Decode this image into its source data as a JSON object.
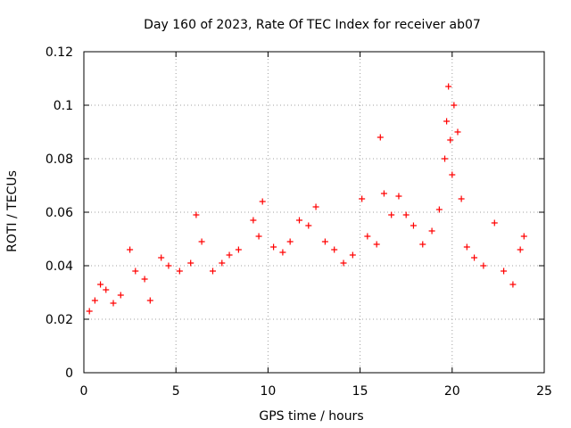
{
  "chart_data": {
    "type": "scatter",
    "title": "Day 160 of 2023, Rate Of TEC Index for receiver ab07",
    "xlabel": "GPS time / hours",
    "ylabel": "ROTI / TECUs",
    "xlim": [
      0,
      25
    ],
    "ylim": [
      0,
      0.12
    ],
    "xticks": [
      "0",
      "5",
      "10",
      "15",
      "20",
      "25"
    ],
    "yticks": [
      "0",
      "0.02",
      "0.04",
      "0.06",
      "0.08",
      "0.1",
      "0.12"
    ],
    "grid": true,
    "marker": "+",
    "color": "#ff0000",
    "series": [
      {
        "points": [
          [
            0.3,
            0.023
          ],
          [
            0.6,
            0.027
          ],
          [
            0.9,
            0.033
          ],
          [
            1.2,
            0.031
          ],
          [
            1.6,
            0.026
          ],
          [
            2.0,
            0.029
          ],
          [
            2.5,
            0.046
          ],
          [
            2.8,
            0.038
          ],
          [
            3.3,
            0.035
          ],
          [
            3.6,
            0.027
          ],
          [
            4.2,
            0.043
          ],
          [
            4.6,
            0.04
          ],
          [
            5.2,
            0.038
          ],
          [
            5.8,
            0.041
          ],
          [
            6.1,
            0.059
          ],
          [
            6.4,
            0.049
          ],
          [
            7.0,
            0.038
          ],
          [
            7.5,
            0.041
          ],
          [
            7.9,
            0.044
          ],
          [
            8.4,
            0.046
          ],
          [
            9.2,
            0.057
          ],
          [
            9.5,
            0.051
          ],
          [
            9.7,
            0.064
          ],
          [
            10.3,
            0.047
          ],
          [
            10.8,
            0.045
          ],
          [
            11.2,
            0.049
          ],
          [
            11.7,
            0.057
          ],
          [
            12.2,
            0.055
          ],
          [
            12.6,
            0.062
          ],
          [
            13.1,
            0.049
          ],
          [
            13.6,
            0.046
          ],
          [
            14.1,
            0.041
          ],
          [
            14.6,
            0.044
          ],
          [
            15.1,
            0.065
          ],
          [
            15.4,
            0.051
          ],
          [
            15.9,
            0.048
          ],
          [
            16.1,
            0.088
          ],
          [
            16.3,
            0.067
          ],
          [
            16.7,
            0.059
          ],
          [
            17.1,
            0.066
          ],
          [
            17.5,
            0.059
          ],
          [
            17.9,
            0.055
          ],
          [
            18.4,
            0.048
          ],
          [
            18.9,
            0.053
          ],
          [
            19.3,
            0.061
          ],
          [
            19.6,
            0.08
          ],
          [
            19.7,
            0.094
          ],
          [
            19.8,
            0.107
          ],
          [
            19.9,
            0.087
          ],
          [
            20.0,
            0.074
          ],
          [
            20.1,
            0.1
          ],
          [
            20.3,
            0.09
          ],
          [
            20.5,
            0.065
          ],
          [
            20.8,
            0.047
          ],
          [
            21.2,
            0.043
          ],
          [
            21.7,
            0.04
          ],
          [
            22.3,
            0.056
          ],
          [
            22.8,
            0.038
          ],
          [
            23.3,
            0.033
          ],
          [
            23.7,
            0.046
          ],
          [
            23.9,
            0.051
          ]
        ]
      }
    ]
  }
}
